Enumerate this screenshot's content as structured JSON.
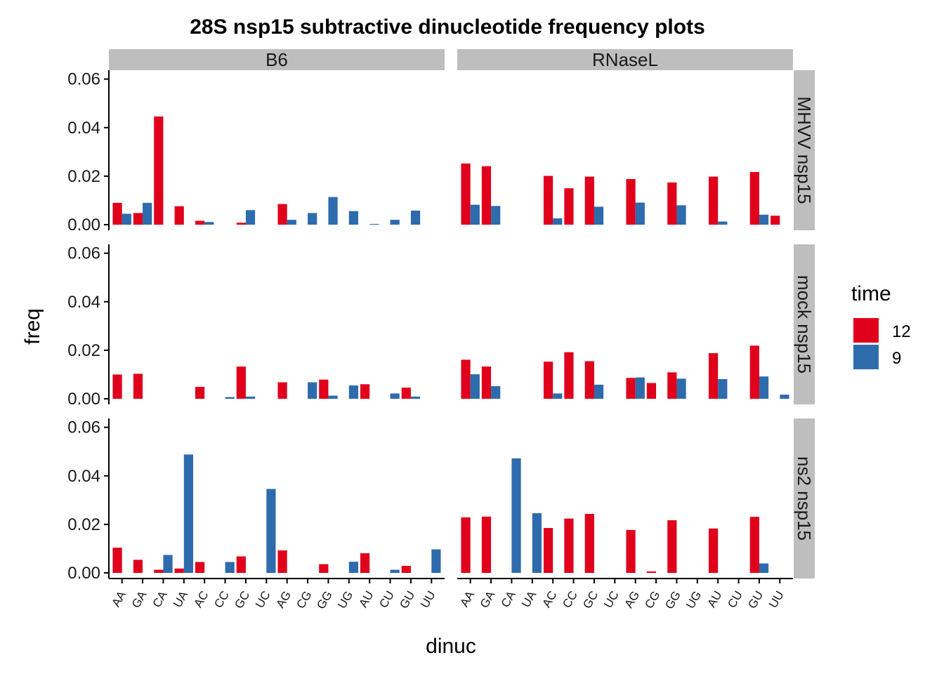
{
  "chart_data": {
    "type": "bar",
    "title": "28S nsp15 subtractive dinucleotide frequency plots",
    "xlabel": "dinuc",
    "ylabel": "freq",
    "ylim": [
      0,
      0.0625
    ],
    "yticks": [
      "0.00",
      "0.02",
      "0.04",
      "0.06"
    ],
    "ytick_values": [
      0,
      0.02,
      0.04,
      0.06
    ],
    "categories": [
      "AA",
      "GA",
      "CA",
      "UA",
      "AC",
      "CC",
      "GC",
      "UC",
      "AG",
      "CG",
      "GG",
      "UG",
      "AU",
      "CU",
      "GU",
      "UU"
    ],
    "facet_columns": [
      "B6",
      "RNaseL"
    ],
    "facet_rows": [
      "MHVV nsp15",
      "mock nsp15",
      "ns2 nsp15"
    ],
    "legend": {
      "title": "time",
      "position": "right",
      "items": [
        {
          "label": "12",
          "color": "#E0001B"
        },
        {
          "label": "9",
          "color": "#2E6BAD"
        }
      ]
    },
    "series_names": [
      "12",
      "9"
    ],
    "panels": [
      {
        "row": 0,
        "col": 0,
        "values": {
          "12": [
            0.009,
            0.0048,
            0.0446,
            0.0076,
            0.0016,
            null,
            0.0008,
            null,
            0.0085,
            null,
            null,
            null,
            null,
            null,
            null,
            null
          ],
          "9": [
            0.0045,
            0.009,
            null,
            null,
            0.0011,
            null,
            0.006,
            null,
            0.002,
            0.0048,
            0.0114,
            0.0056,
            0.0003,
            0.002,
            0.0058,
            null
          ]
        }
      },
      {
        "row": 0,
        "col": 1,
        "values": {
          "12": [
            0.0252,
            0.0241,
            null,
            null,
            0.0201,
            0.015,
            0.0198,
            null,
            0.0188,
            null,
            0.0174,
            null,
            0.0198,
            null,
            0.0217,
            0.0037
          ],
          "9": [
            0.0082,
            0.0077,
            null,
            null,
            0.0026,
            null,
            0.0074,
            null,
            0.0091,
            null,
            0.008,
            null,
            0.0013,
            null,
            0.0041,
            null
          ]
        }
      },
      {
        "row": 1,
        "col": 0,
        "values": {
          "12": [
            0.01,
            0.0103,
            null,
            null,
            0.0049,
            null,
            0.0133,
            null,
            0.0068,
            null,
            0.0079,
            null,
            0.006,
            null,
            0.0046,
            null
          ],
          "9": [
            null,
            null,
            null,
            null,
            null,
            0.0007,
            0.0009,
            null,
            null,
            0.0068,
            0.0013,
            0.0055,
            null,
            0.0022,
            0.0009,
            null
          ]
        }
      },
      {
        "row": 1,
        "col": 1,
        "values": {
          "12": [
            0.0161,
            0.0133,
            null,
            null,
            0.0153,
            0.0192,
            0.0155,
            null,
            0.0086,
            0.0065,
            0.0109,
            null,
            0.0188,
            null,
            0.0219,
            null
          ],
          "9": [
            0.0101,
            0.0052,
            null,
            null,
            0.0022,
            null,
            0.0058,
            null,
            0.0088,
            null,
            0.0083,
            null,
            0.0081,
            null,
            0.0092,
            0.0017
          ]
        }
      },
      {
        "row": 2,
        "col": 0,
        "values": {
          "12": [
            0.0104,
            0.0054,
            0.0013,
            0.0018,
            0.0045,
            null,
            0.0068,
            null,
            0.0093,
            null,
            0.0036,
            null,
            0.0081,
            null,
            0.0029,
            null
          ],
          "9": [
            null,
            null,
            0.0074,
            0.0488,
            null,
            0.0045,
            null,
            0.0346,
            null,
            null,
            null,
            0.0046,
            null,
            0.0013,
            null,
            0.0097
          ]
        }
      },
      {
        "row": 2,
        "col": 1,
        "values": {
          "12": [
            0.0229,
            0.0232,
            null,
            null,
            0.0185,
            0.0224,
            0.0243,
            null,
            0.0177,
            0.0006,
            0.0217,
            null,
            0.0183,
            null,
            0.0231,
            null
          ],
          "9": [
            null,
            null,
            0.0472,
            0.0246,
            null,
            null,
            null,
            null,
            null,
            null,
            null,
            null,
            null,
            null,
            0.0039,
            null
          ]
        }
      }
    ]
  }
}
